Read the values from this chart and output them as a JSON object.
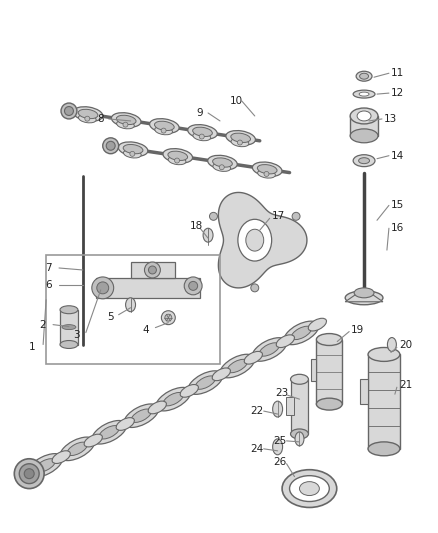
{
  "bg_color": "#ffffff",
  "lc": "#666666",
  "lc_dark": "#444444",
  "fc_light": "#d8d8d8",
  "fc_mid": "#c0c0c0",
  "fc_dark": "#a0a0a0"
}
